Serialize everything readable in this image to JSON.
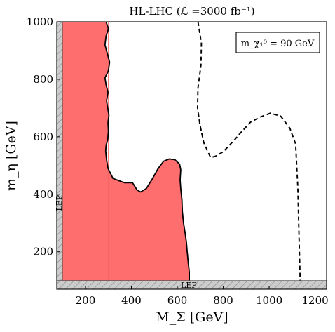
{
  "chart_data": {
    "type": "area",
    "title": "HL-LHC (ℒ =3000 fb⁻¹)",
    "xlabel": "M_Σ [GeV]",
    "ylabel": "m_η [GeV]",
    "xlim": [
      75,
      1250
    ],
    "ylim": [
      70,
      1000
    ],
    "xticks": [
      "200",
      "400",
      "600",
      "800",
      "1000",
      "1200"
    ],
    "yticks": [
      "200",
      "400",
      "600",
      "800",
      "1000"
    ],
    "annotation": "m_χ₁⁰ = 90 GeV",
    "lep_labels": [
      "LEP",
      "LEP"
    ],
    "lep_excluded": {
      "x_max": 100,
      "y_max": 100
    },
    "grid": false,
    "series": [
      {
        "kind": "filled-region",
        "color": "#ff6e6e",
        "boundary": [
          [
            100,
            100
          ],
          [
            100,
            1000
          ],
          [
            290,
            1000
          ],
          [
            300,
            975
          ],
          [
            290,
            950
          ],
          [
            285,
            920
          ],
          [
            295,
            890
          ],
          [
            305,
            860
          ],
          [
            300,
            830
          ],
          [
            285,
            805
          ],
          [
            290,
            780
          ],
          [
            298,
            755
          ],
          [
            292,
            725
          ],
          [
            297,
            700
          ],
          [
            302,
            675
          ],
          [
            298,
            650
          ],
          [
            300,
            620
          ],
          [
            297,
            590
          ],
          [
            290,
            570
          ],
          [
            288,
            550
          ],
          [
            292,
            520
          ],
          [
            298,
            490
          ],
          [
            320,
            455
          ],
          [
            370,
            440
          ],
          [
            405,
            440
          ],
          [
            425,
            415
          ],
          [
            440,
            408
          ],
          [
            465,
            420
          ],
          [
            490,
            452
          ],
          [
            515,
            488
          ],
          [
            540,
            515
          ],
          [
            565,
            523
          ],
          [
            590,
            520
          ],
          [
            610,
            505
          ],
          [
            615,
            485
          ],
          [
            612,
            450
          ],
          [
            615,
            420
          ],
          [
            620,
            380
          ],
          [
            622,
            340
          ],
          [
            627,
            300
          ],
          [
            635,
            260
          ],
          [
            640,
            230
          ],
          [
            643,
            200
          ],
          [
            648,
            160
          ],
          [
            652,
            130
          ],
          [
            652,
            100
          ]
        ]
      },
      {
        "kind": "dashed-contour",
        "color": "#000000",
        "points": [
          [
            690,
            1000
          ],
          [
            705,
            925
          ],
          [
            703,
            850
          ],
          [
            690,
            770
          ],
          [
            688,
            700
          ],
          [
            698,
            645
          ],
          [
            715,
            580
          ],
          [
            745,
            528
          ],
          [
            765,
            532
          ],
          [
            800,
            548
          ],
          [
            850,
            590
          ],
          [
            880,
            618
          ],
          [
            920,
            652
          ],
          [
            965,
            670
          ],
          [
            1005,
            682
          ],
          [
            1050,
            672
          ],
          [
            1090,
            630
          ],
          [
            1115,
            575
          ],
          [
            1125,
            420
          ],
          [
            1130,
            250
          ],
          [
            1135,
            100
          ]
        ]
      }
    ]
  }
}
